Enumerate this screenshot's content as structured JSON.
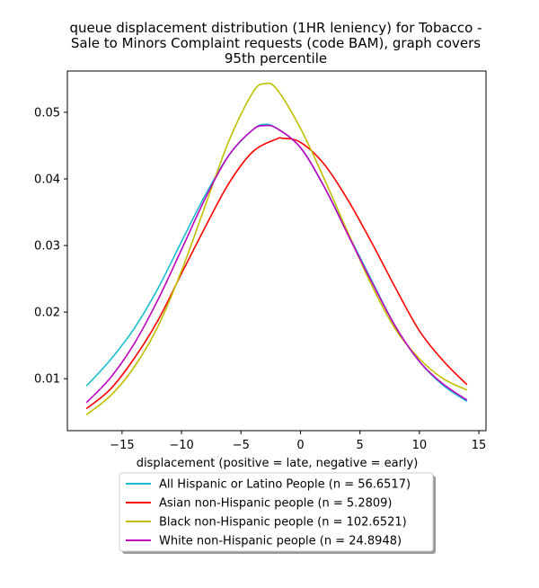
{
  "chart_data": {
    "type": "line",
    "title": "queue displacement distribution (1HR leniency) for Tobacco -\nSale to Minors Complaint  requests (code BAM), graph covers\n95th percentile",
    "xlabel": "displacement (positive = late, negative = early)",
    "ylabel": "",
    "xlim": [
      -19.6,
      15.6
    ],
    "ylim": [
      0.0022,
      0.0562
    ],
    "xticks": [
      -15,
      -10,
      -5,
      0,
      5,
      10,
      15
    ],
    "xtick_labels": [
      "−15",
      "−10",
      "−5",
      "0",
      "5",
      "10",
      "15"
    ],
    "yticks": [
      0.01,
      0.02,
      0.03,
      0.04,
      0.05
    ],
    "ytick_labels": [
      "0.01",
      "0.02",
      "0.03",
      "0.04",
      "0.05"
    ],
    "grid": false,
    "legend_position": "below-plot",
    "series": [
      {
        "name": "All Hispanic or Latino People (n = 56.6517)",
        "color": "#17becf",
        "x": [
          -18,
          -16,
          -14,
          -12,
          -10,
          -8,
          -6,
          -4,
          -3,
          -2,
          0,
          2,
          4,
          6,
          8,
          10,
          12,
          14
        ],
        "y": [
          0.0089,
          0.0128,
          0.0175,
          0.0235,
          0.0306,
          0.0376,
          0.0436,
          0.0474,
          0.0482,
          0.0476,
          0.0447,
          0.0388,
          0.0318,
          0.0247,
          0.0178,
          0.0126,
          0.009,
          0.0066
        ]
      },
      {
        "name": "Asian non-Hispanic people (n = 5.2809)",
        "color": "#ff0000",
        "x": [
          -18,
          -16,
          -14,
          -12,
          -10,
          -8,
          -6,
          -4,
          -2,
          -1.5,
          0,
          2,
          4,
          6,
          8,
          10,
          12,
          14
        ],
        "y": [
          0.0055,
          0.0084,
          0.013,
          0.0187,
          0.0258,
          0.0328,
          0.0394,
          0.0441,
          0.046,
          0.0461,
          0.0455,
          0.0422,
          0.0368,
          0.0304,
          0.0236,
          0.0172,
          0.0127,
          0.0091
        ]
      },
      {
        "name": "Black non-Hispanic people (n = 102.6521)",
        "color": "#bfbf00",
        "x": [
          -18,
          -16,
          -14,
          -12,
          -10,
          -8,
          -6,
          -4,
          -3,
          -2,
          0,
          2,
          4,
          6,
          8,
          10,
          12,
          14
        ],
        "y": [
          0.0046,
          0.0074,
          0.0117,
          0.0178,
          0.0262,
          0.036,
          0.0458,
          0.053,
          0.0543,
          0.0535,
          0.0476,
          0.04,
          0.0319,
          0.024,
          0.0174,
          0.013,
          0.01,
          0.0083
        ]
      },
      {
        "name": "White non-Hispanic people (n = 24.8948)",
        "color": "#bf00bf",
        "x": [
          -18,
          -16,
          -14,
          -12,
          -10,
          -8,
          -6,
          -4,
          -3,
          -2,
          0,
          2,
          4,
          6,
          8,
          10,
          12,
          14
        ],
        "y": [
          0.0064,
          0.0101,
          0.0152,
          0.0218,
          0.0294,
          0.0371,
          0.0436,
          0.0474,
          0.048,
          0.0476,
          0.0447,
          0.0388,
          0.0316,
          0.0245,
          0.0178,
          0.0126,
          0.0092,
          0.0068
        ]
      }
    ]
  }
}
